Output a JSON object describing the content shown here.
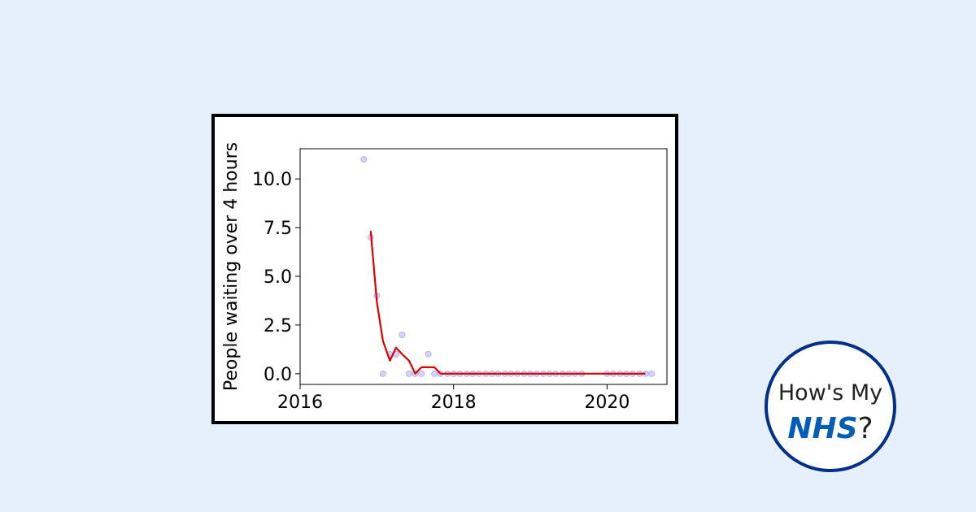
{
  "logo": {
    "line1": "How's My",
    "nhs": "NHS",
    "suffix": "?"
  },
  "colors": {
    "background": "#e6effc",
    "trend": "#dd0000",
    "points": "#8a8af0",
    "logo_border": "#003087",
    "logo_nhs": "#005eb8"
  },
  "chart_data": {
    "type": "scatter",
    "title": "",
    "xlabel": "",
    "ylabel": "People waiting over 4 hours",
    "xlim": [
      2016.0,
      2020.78
    ],
    "ylim": [
      -0.55,
      11.55
    ],
    "xticks": [
      2016,
      2018,
      2020
    ],
    "xtick_labels": [
      "2016",
      "2018",
      "2020"
    ],
    "yticks": [
      0.0,
      2.5,
      5.0,
      7.5,
      10.0
    ],
    "ytick_labels": [
      "0.0",
      "2.5",
      "5.0",
      "7.5",
      "10.0"
    ],
    "grid": false,
    "series": [
      {
        "kind": "scatter",
        "color": "#8a8af0",
        "x": [
          2016.83,
          2016.92,
          2017.0,
          2017.08,
          2017.17,
          2017.25,
          2017.33,
          2017.42,
          2017.5,
          2017.58,
          2017.67,
          2017.75,
          2017.83,
          2017.92,
          2018.0,
          2018.08,
          2018.17,
          2018.25,
          2018.33,
          2018.42,
          2018.5,
          2018.58,
          2018.67,
          2018.75,
          2018.83,
          2018.92,
          2019.0,
          2019.08,
          2019.17,
          2019.25,
          2019.33,
          2019.42,
          2019.5,
          2019.58,
          2019.67,
          2020.0,
          2020.08,
          2020.17,
          2020.25,
          2020.33,
          2020.42,
          2020.5,
          2020.58
        ],
        "y": [
          11,
          7,
          4,
          0,
          1,
          1,
          2,
          0,
          0,
          0,
          1,
          0,
          0,
          0,
          0,
          0,
          0,
          0,
          0,
          0,
          0,
          0,
          0,
          0,
          0,
          0,
          0,
          0,
          0,
          0,
          0,
          0,
          0,
          0,
          0,
          0,
          0,
          0,
          0,
          0,
          0,
          0,
          0
        ]
      },
      {
        "kind": "line",
        "color": "#dd0000",
        "x": [
          2016.92,
          2017.0,
          2017.08,
          2017.17,
          2017.25,
          2017.33,
          2017.42,
          2017.5,
          2017.58,
          2017.67,
          2017.75,
          2017.83,
          2017.92,
          2018.0,
          2018.5,
          2019.0,
          2019.5,
          2020.0,
          2020.5
        ],
        "y": [
          7.33,
          3.67,
          1.67,
          0.67,
          1.33,
          1.0,
          0.67,
          0.0,
          0.33,
          0.33,
          0.33,
          0.0,
          0.0,
          0.0,
          0.0,
          0.0,
          0.0,
          0.0,
          0.0
        ]
      }
    ]
  }
}
